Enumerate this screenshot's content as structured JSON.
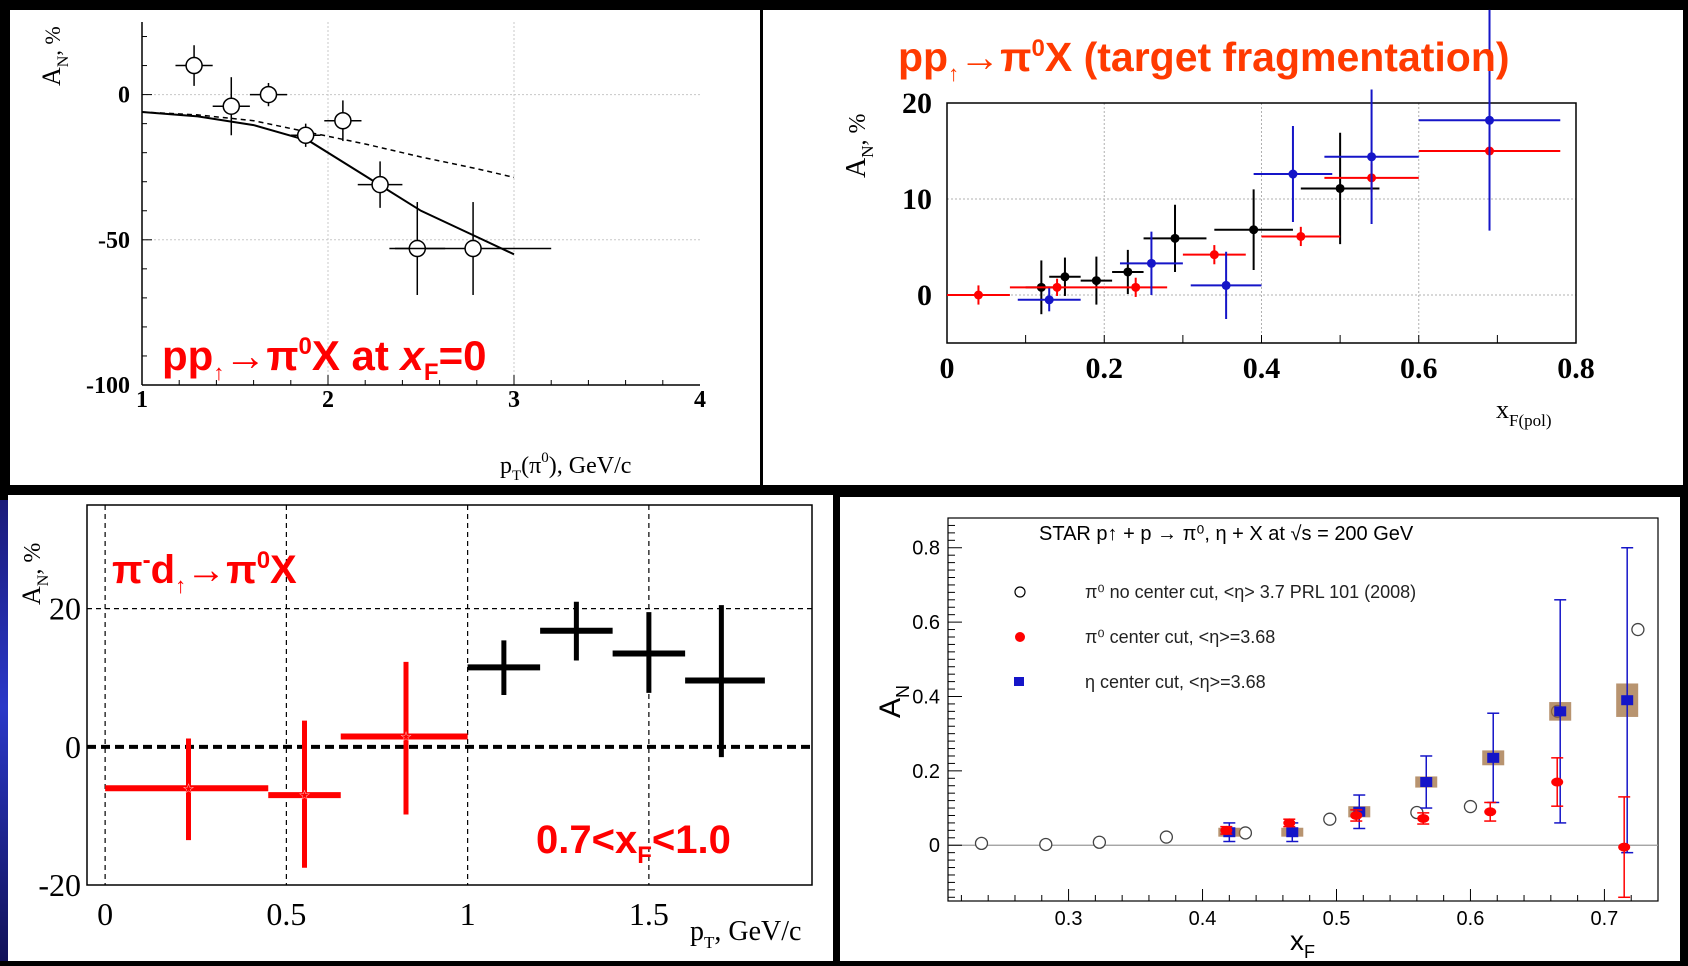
{
  "colors": {
    "red": "#ff0000",
    "black": "#000000",
    "blue": "#1515c8",
    "title_orange": "#ff3a00",
    "brown": "#a07040"
  },
  "chart_data": [
    {
      "type": "scatter",
      "panel": "top-left",
      "title": "",
      "overlay_text": {
        "pre": "pp",
        "sub1": "↑",
        "mid": "→π",
        "sup": "0",
        "post": "X at  ",
        "ital": "x",
        "sub2": "F",
        "tail": "=0"
      },
      "ylabel": "A",
      "ylabel_sub": "N",
      "ylabel_unit": ", %",
      "xlabel": "p",
      "xlabel_sub": "T",
      "xlabel_tail": "(π",
      "xlabel_sup": "0",
      "xlabel_end": "), GeV/c",
      "xlim": [
        1,
        4
      ],
      "ylim": [
        -100,
        25
      ],
      "xticks": [
        "1",
        "2",
        "3",
        "4"
      ],
      "yticks": [
        {
          "v": 0,
          "label": "0"
        },
        {
          "v": -50,
          "label": "-50"
        },
        {
          "v": -100,
          "label": "-100"
        }
      ],
      "grid": true,
      "points": [
        {
          "x": 1.28,
          "y": 10,
          "xerr": 0.1,
          "yerr": 7
        },
        {
          "x": 1.48,
          "y": -4,
          "xerr": 0.1,
          "yerr": 10
        },
        {
          "x": 1.68,
          "y": 0,
          "xerr": 0.1,
          "yerr": 4
        },
        {
          "x": 1.88,
          "y": -14,
          "xerr": 0.08,
          "yerr": 4
        },
        {
          "x": 2.08,
          "y": -9,
          "xerr": 0.1,
          "yerr": 7
        },
        {
          "x": 2.28,
          "y": -31,
          "xerr": 0.12,
          "yerr": 8
        },
        {
          "x": 2.48,
          "y": -53,
          "xerr": 0.15,
          "yerr": 16
        },
        {
          "x": 2.78,
          "y": -53,
          "xerr": 0.42,
          "yerr": 16
        }
      ],
      "curve_solid": [
        [
          1.0,
          -6
        ],
        [
          1.3,
          -7.5
        ],
        [
          1.6,
          -10.5
        ],
        [
          1.9,
          -16
        ],
        [
          2.2,
          -28
        ],
        [
          2.5,
          -40
        ],
        [
          2.8,
          -49
        ],
        [
          3.0,
          -55
        ]
      ],
      "curve_dashed": [
        [
          1.0,
          -6
        ],
        [
          1.3,
          -7
        ],
        [
          1.6,
          -9
        ],
        [
          1.9,
          -13
        ],
        [
          2.2,
          -17
        ],
        [
          2.5,
          -21.5
        ],
        [
          2.8,
          -25.5
        ],
        [
          3.0,
          -28.5
        ]
      ]
    },
    {
      "type": "scatter",
      "panel": "top-right",
      "title": {
        "pre": "pp",
        "sub": "↑",
        "mid": "→π",
        "sup": "0",
        "post": "X (target fragmentation)"
      },
      "ylabel": "A",
      "ylabel_sub": "N",
      "ylabel_unit": ", %",
      "xlabel": "x",
      "xlabel_sub": "F(pol)",
      "xlim": [
        0,
        0.8
      ],
      "ylim": [
        -5,
        20
      ],
      "xticks": [
        "0",
        "0.2",
        "0.4",
        "0.6",
        "0.8"
      ],
      "yticks": [
        "0",
        "10",
        "20"
      ],
      "grid": true,
      "series": [
        {
          "color": "black",
          "points": [
            {
              "x": 0.12,
              "y": 0.8,
              "xerr": 0.02,
              "yerr": 2.8
            },
            {
              "x": 0.15,
              "y": 1.9,
              "xerr": 0.02,
              "yerr": 2.0
            },
            {
              "x": 0.19,
              "y": 1.5,
              "xerr": 0.02,
              "yerr": 2.5
            },
            {
              "x": 0.23,
              "y": 2.4,
              "xerr": 0.02,
              "yerr": 2.3
            },
            {
              "x": 0.29,
              "y": 5.9,
              "xerr": 0.04,
              "yerr": 3.5
            },
            {
              "x": 0.39,
              "y": 6.8,
              "xerr": 0.05,
              "yerr": 4.2
            },
            {
              "x": 0.5,
              "y": 11.1,
              "xerr": 0.05,
              "yerr": 5.8
            }
          ]
        },
        {
          "color": "red",
          "points": [
            {
              "x": 0.04,
              "y": 0,
              "xerr": 0.04,
              "yerr": 1.0
            },
            {
              "x": 0.14,
              "y": 0.8,
              "xerr": 0.06,
              "yerr": 0.9
            },
            {
              "x": 0.24,
              "y": 0.8,
              "xerr": 0.04,
              "yerr": 1.0
            },
            {
              "x": 0.34,
              "y": 4.2,
              "xerr": 0.04,
              "yerr": 1.0
            },
            {
              "x": 0.45,
              "y": 6.1,
              "xerr": 0.05,
              "yerr": 1.0
            },
            {
              "x": 0.54,
              "y": 12.2,
              "xerr": 0.06,
              "yerr": 1.5
            },
            {
              "x": 0.69,
              "y": 15.0,
              "xerr": 0.09,
              "yerr": 2.0
            }
          ]
        },
        {
          "color": "blue",
          "points": [
            {
              "x": 0.13,
              "y": -0.5,
              "xerr": 0.04,
              "yerr": 1.2
            },
            {
              "x": 0.26,
              "y": 3.3,
              "xerr": 0.04,
              "yerr": 3.3
            },
            {
              "x": 0.355,
              "y": 1.0,
              "xerr": 0.045,
              "yerr": 3.5
            },
            {
              "x": 0.44,
              "y": 12.6,
              "xerr": 0.05,
              "yerr": 5.0
            },
            {
              "x": 0.54,
              "y": 14.4,
              "xerr": 0.06,
              "yerr": 7.0
            },
            {
              "x": 0.69,
              "y": 18.2,
              "xerr": 0.09,
              "yerr": 11.5
            }
          ]
        }
      ]
    },
    {
      "type": "scatter",
      "panel": "bottom-left",
      "title": {
        "pre": "π",
        "sup1": "-",
        "mid": "d",
        "sub": "↑",
        "mid2": "→π",
        "sup": "0",
        "post": "X"
      },
      "annotation": {
        "pre": "0.7<x",
        "sub": "F",
        "post": "<1.0"
      },
      "ylabel": "A",
      "ylabel_sub": "N",
      "ylabel_unit": ", %",
      "xlabel": "p",
      "xlabel_sub": "T",
      "xlabel_tail": ", GeV/c",
      "xlim": [
        -0.05,
        1.95
      ],
      "ylim": [
        -20,
        35
      ],
      "xticks": [
        {
          "v": 0,
          "label": "0"
        },
        {
          "v": 0.5,
          "label": "0.5"
        },
        {
          "v": 1,
          "label": "1"
        },
        {
          "v": 1.5,
          "label": "1.5"
        }
      ],
      "yticks": [
        {
          "v": 20,
          "label": "20"
        },
        {
          "v": 0,
          "label": "0"
        },
        {
          "v": -20,
          "label": "-20"
        }
      ],
      "grid": true,
      "series": [
        {
          "color": "red",
          "points": [
            {
              "x": 0.23,
              "y": -6,
              "x0": 0.0,
              "x1": 0.45,
              "ylo": -13.5,
              "yhi": 1.2
            },
            {
              "x": 0.55,
              "y": -7,
              "x0": 0.45,
              "x1": 0.65,
              "ylo": -17.5,
              "yhi": 3.8
            },
            {
              "x": 0.83,
              "y": 1.5,
              "x0": 0.65,
              "x1": 1.0,
              "ylo": -9.8,
              "yhi": 12.3
            }
          ]
        },
        {
          "color": "black",
          "points": [
            {
              "x": 1.1,
              "y": 11.5,
              "x0": 1.0,
              "x1": 1.2,
              "ylo": 7.5,
              "yhi": 15.4
            },
            {
              "x": 1.3,
              "y": 16.8,
              "x0": 1.2,
              "x1": 1.4,
              "ylo": 12.5,
              "yhi": 21.0
            },
            {
              "x": 1.5,
              "y": 13.5,
              "x0": 1.4,
              "x1": 1.6,
              "ylo": 7.8,
              "yhi": 19.5
            },
            {
              "x": 1.7,
              "y": 9.6,
              "x0": 1.6,
              "x1": 1.82,
              "ylo": -1.5,
              "yhi": 20.5
            }
          ]
        }
      ]
    },
    {
      "type": "scatter",
      "panel": "bottom-right",
      "title": "STAR  p↑ + p → π⁰, η + X at √s = 200 GeV",
      "legend": [
        {
          "marker": "open-circle",
          "label": "π⁰  no center cut, <η> 3.7  PRL 101 (2008)"
        },
        {
          "marker": "red-dot",
          "label": "π⁰   center cut, <η>=3.68"
        },
        {
          "marker": "blue-square",
          "label": "η    center cut, <η>=3.68"
        }
      ],
      "ylabel": "A",
      "ylabel_sub": "N",
      "xlabel": "x",
      "xlabel_sub": "F",
      "xlim": [
        0.21,
        0.74
      ],
      "ylim": [
        -0.15,
        0.88
      ],
      "xticks": [
        "0.3",
        "0.4",
        "0.5",
        "0.6",
        "0.7"
      ],
      "yticks": [
        "0",
        "0.2",
        "0.4",
        "0.6",
        "0.8"
      ],
      "grid": false,
      "open_circles": [
        [
          0.235,
          0.005
        ],
        [
          0.283,
          0.002
        ],
        [
          0.323,
          0.008
        ],
        [
          0.373,
          0.022
        ],
        [
          0.432,
          0.033
        ],
        [
          0.495,
          0.07
        ],
        [
          0.56,
          0.088
        ],
        [
          0.6,
          0.104
        ],
        [
          0.665,
          0.36
        ],
        [
          0.725,
          0.58
        ]
      ],
      "red_points": [
        {
          "x": 0.42,
          "y": 0.04,
          "err": 0.01
        },
        {
          "x": 0.467,
          "y": 0.06,
          "err": 0.01
        },
        {
          "x": 0.517,
          "y": 0.08,
          "err": 0.015
        },
        {
          "x": 0.567,
          "y": 0.072,
          "err": 0.015
        },
        {
          "x": 0.617,
          "y": 0.09,
          "err": 0.025
        },
        {
          "x": 0.667,
          "y": 0.17,
          "err": 0.065
        },
        {
          "x": 0.717,
          "y": -0.005,
          "err": 0.135
        }
      ],
      "blue_points": [
        {
          "x": 0.42,
          "y": 0.035,
          "err": 0.025,
          "sys": 0.012
        },
        {
          "x": 0.467,
          "y": 0.035,
          "err": 0.025,
          "sys": 0.012
        },
        {
          "x": 0.517,
          "y": 0.09,
          "err": 0.045,
          "sys": 0.015
        },
        {
          "x": 0.567,
          "y": 0.17,
          "err": 0.07,
          "sys": 0.015
        },
        {
          "x": 0.617,
          "y": 0.235,
          "err": 0.12,
          "sys": 0.02
        },
        {
          "x": 0.667,
          "y": 0.36,
          "err": 0.3,
          "sys": 0.025
        },
        {
          "x": 0.717,
          "y": 0.39,
          "err": 0.41,
          "sys": 0.045
        }
      ]
    }
  ]
}
